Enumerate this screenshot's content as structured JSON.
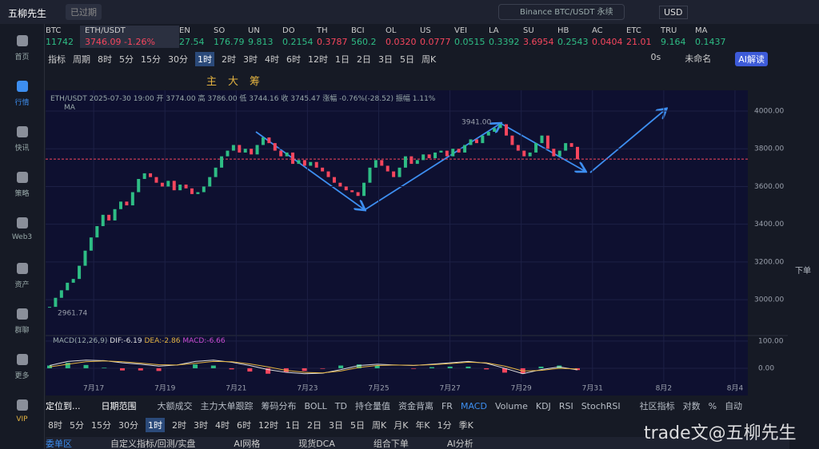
{
  "header": {
    "app": "五柳先生",
    "status": "已过期",
    "search": "Binance BTC/USDT 永续",
    "currency": "USD"
  },
  "tickers": [
    {
      "symbol": "BTC",
      "price": "11742",
      "up": true
    },
    {
      "symbol": "ETH/USDT",
      "price": "3746.09",
      "change": "-1.26%",
      "up": false
    },
    {
      "symbol": "EN",
      "price": "27.54",
      "up": true
    },
    {
      "symbol": "SO",
      "price": "176.79",
      "up": true
    },
    {
      "symbol": "UN",
      "price": "9.813",
      "up": true
    },
    {
      "symbol": "DO",
      "price": "0.2154",
      "up": true
    },
    {
      "symbol": "TH",
      "price": "0.3787",
      "up": false
    },
    {
      "symbol": "BCI",
      "price": "560.2",
      "up": true
    },
    {
      "symbol": "OL",
      "price": "0.0320",
      "up": false
    },
    {
      "symbol": "US",
      "price": "0.0777",
      "up": false
    },
    {
      "symbol": "VEI",
      "price": "0.0515",
      "up": true
    },
    {
      "symbol": "LA",
      "price": "0.3392",
      "up": true
    },
    {
      "symbol": "SU",
      "price": "3.6954",
      "up": false
    },
    {
      "symbol": "HB",
      "price": "0.2543",
      "up": true
    },
    {
      "symbol": "AC",
      "price": "0.0404",
      "up": false
    },
    {
      "symbol": "ETC",
      "price": "21.01",
      "up": false
    },
    {
      "symbol": "TRU",
      "price": "9.164",
      "up": true
    },
    {
      "symbol": "MA",
      "price": "0.1437",
      "up": true
    }
  ],
  "sidebar": [
    "首页",
    "行情",
    "快讯",
    "策略",
    "Web3",
    "资产",
    "群聊",
    "更多",
    "VIP"
  ],
  "toolbar": {
    "items": [
      "指标",
      "周期",
      "8时",
      "5分",
      "15分",
      "30分",
      "1时",
      "2时",
      "3时",
      "4时",
      "6时",
      "12时",
      "1日",
      "2日",
      "3日",
      "5日",
      "周K"
    ],
    "active": "1时",
    "right": [
      "0s",
      "未命名",
      "AI解读"
    ]
  },
  "draw_tools": [
    "主",
    "大",
    "筹"
  ],
  "chart_data": {
    "type": "candlestick",
    "symbol": "ETH/USDT",
    "info": "2025-07-30 19:00 开 3774.00 高 3786.00 低 3744.16 收 3745.47 涨幅 -0.76%(-28.52) 振幅 1.11%",
    "indicator": "MA",
    "closes": [
      2962,
      3010,
      3050,
      3090,
      3110,
      3180,
      3260,
      3330,
      3390,
      3450,
      3420,
      3480,
      3520,
      3500,
      3570,
      3640,
      3670,
      3650,
      3620,
      3600,
      3630,
      3580,
      3610,
      3590,
      3560,
      3570,
      3600,
      3650,
      3700,
      3760,
      3790,
      3820,
      3780,
      3800,
      3770,
      3820,
      3860,
      3830,
      3790,
      3760,
      3780,
      3720,
      3740,
      3710,
      3730,
      3700,
      3680,
      3650,
      3620,
      3600,
      3580,
      3570,
      3550,
      3620,
      3700,
      3740,
      3710,
      3680,
      3650,
      3700,
      3760,
      3720,
      3740,
      3770,
      3750,
      3780,
      3790,
      3760,
      3800,
      3780,
      3820,
      3850,
      3830,
      3870,
      3890,
      3910,
      3930,
      3870,
      3820,
      3790,
      3760,
      3780,
      3830,
      3870,
      3800,
      3760,
      3790,
      3830,
      3810,
      3745
    ],
    "up_color": "#2ebd85",
    "down_color": "#f6465d",
    "ylim": [
      2810,
      4110
    ],
    "yticks": [
      {
        "value": 3000,
        "label": "3000.00"
      },
      {
        "value": 3200,
        "label": "3200.00"
      },
      {
        "value": 3400,
        "label": "3400.00"
      },
      {
        "value": 3600,
        "label": "3600.00"
      },
      {
        "value": 3800,
        "label": "3800.00"
      },
      {
        "value": 4000,
        "label": "4000.00"
      }
    ],
    "xlim": [
      15.65,
      35.36
    ],
    "xticks": [
      {
        "value": 17,
        "label": "7月17"
      },
      {
        "value": 19,
        "label": "7月19"
      },
      {
        "value": 21,
        "label": "7月21"
      },
      {
        "value": 23,
        "label": "7月23"
      },
      {
        "value": 25,
        "label": "7月25"
      },
      {
        "value": 27,
        "label": "7月27"
      },
      {
        "value": 29,
        "label": "7月29"
      },
      {
        "value": 31,
        "label": "7月31"
      },
      {
        "value": 33,
        "label": "8月2"
      },
      {
        "value": 35,
        "label": "8月4"
      }
    ],
    "high": {
      "value": 3941,
      "label": "3941.00"
    },
    "low": {
      "value": 2961.74,
      "label": "2961.74"
    },
    "last_price": 3745.47,
    "macd": {
      "title": "MACD(12,26,9)",
      "dif_label": "DIF:-6.19",
      "dea_label": "DEA:-2.86",
      "macd_label": "MACD:-6.66",
      "dif": [
        10,
        25,
        30,
        28,
        20,
        15,
        8,
        12,
        25,
        30,
        22,
        10,
        -5,
        -15,
        -20,
        -18,
        -5,
        10,
        15,
        12,
        10,
        15,
        20,
        25,
        18,
        0,
        -20,
        -5,
        5,
        -6.19
      ],
      "dea": [
        5,
        15,
        24,
        27,
        24,
        19,
        13,
        12,
        18,
        25,
        24,
        16,
        5,
        -8,
        -15,
        -17,
        -10,
        3,
        10,
        12,
        11,
        13,
        17,
        22,
        20,
        8,
        -10,
        -8,
        0,
        -2.86
      ],
      "hist": [
        10,
        20,
        12,
        2,
        -8,
        -8,
        -10,
        0,
        14,
        10,
        -4,
        -12,
        -20,
        -14,
        -10,
        -2,
        10,
        14,
        10,
        0,
        -2,
        4,
        6,
        6,
        -4,
        -16,
        -20,
        6,
        10,
        -6.66
      ],
      "ylim": [
        -50,
        120
      ],
      "yticks": [
        {
          "value": 0,
          "label": "0.00"
        },
        {
          "value": 100,
          "label": "100.00"
        }
      ]
    }
  },
  "indicator_bar": [
    "定位到...",
    "日期范围",
    "大额成交",
    "主力大单跟踪",
    "筹码分布",
    "BOLL",
    "TD",
    "持仓量值",
    "资金背离",
    "FR",
    "MACD",
    "Volume",
    "KDJ",
    "RSI",
    "StochRSI",
    "社区指标",
    "对数",
    "%",
    "自动"
  ],
  "period_bar": [
    "8时",
    "5分",
    "15分",
    "30分",
    "1时",
    "2时",
    "3时",
    "4时",
    "6时",
    "12时",
    "1日",
    "2日",
    "3日",
    "5日",
    "周K",
    "月K",
    "年K",
    "1分",
    "季K"
  ],
  "tabs": [
    "委单区",
    "自定义指标/回测/实盘",
    "AI网格",
    "现货DCA",
    "组合下单",
    "AI分析"
  ],
  "right_label": "下单",
  "watermark": "trade文@五柳先生"
}
